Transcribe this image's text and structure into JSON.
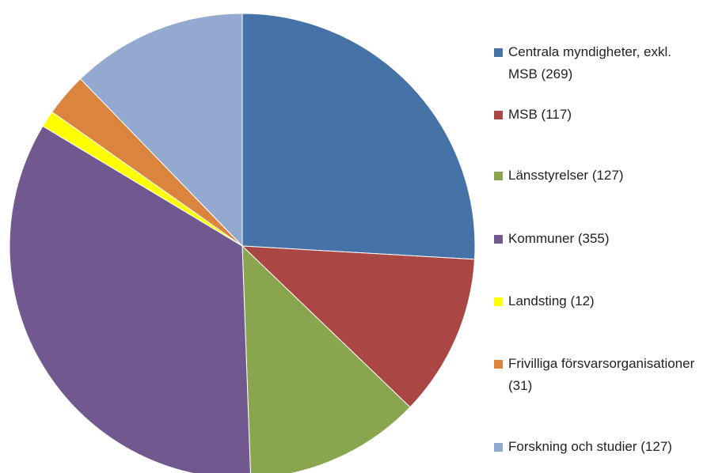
{
  "chart_data": {
    "type": "pie",
    "categories": [
      "Centrala myndigheter, exkl. MSB (269)",
      "MSB (117)",
      "Länsstyrelser (127)",
      "Kommuner (355)",
      "Landsting (12)",
      "Frivilliga försvarsorganisationer (31)",
      "Forskning och studier (127)"
    ],
    "values": [
      269,
      117,
      127,
      355,
      12,
      31,
      127
    ],
    "colors": [
      "#4572a7",
      "#aa4643",
      "#89a54e",
      "#71588f",
      "#ffff00",
      "#db843d",
      "#93a9cf"
    ],
    "legend": "right"
  }
}
